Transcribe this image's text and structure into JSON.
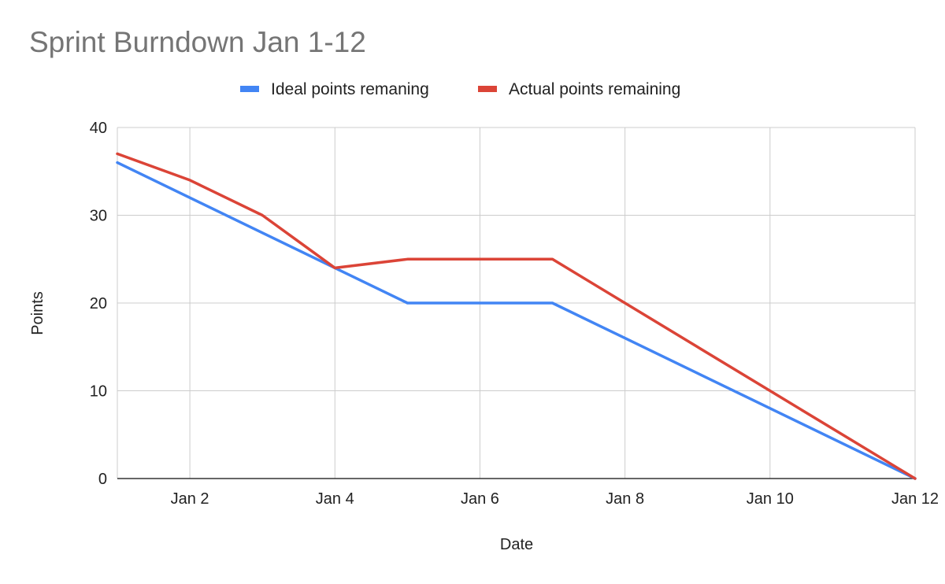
{
  "chart_data": {
    "type": "line",
    "title": "Sprint Burndown Jan 1-12",
    "xlabel": "Date",
    "ylabel": "Points",
    "x": [
      "Jan 1",
      "Jan 2",
      "Jan 3",
      "Jan 4",
      "Jan 5",
      "Jan 6",
      "Jan 7",
      "Jan 8",
      "Jan 9",
      "Jan 10",
      "Jan 11",
      "Jan 12"
    ],
    "x_tick_labels": [
      "Jan 2",
      "Jan 4",
      "Jan 6",
      "Jan 8",
      "Jan 10",
      "Jan 12"
    ],
    "ylim": [
      0,
      40
    ],
    "y_ticks": [
      0,
      10,
      20,
      30,
      40
    ],
    "y_tick_labels": [
      "0",
      "10",
      "20",
      "30",
      "40"
    ],
    "grid": true,
    "legend_position": "top",
    "series": [
      {
        "name": "Ideal points remaning",
        "color": "#4285f4",
        "values": [
          36,
          32,
          28,
          24,
          20,
          20,
          20,
          16,
          12,
          8,
          4,
          0
        ]
      },
      {
        "name": "Actual points remaining",
        "color": "#db4437",
        "values": [
          37,
          34,
          30,
          24,
          25,
          25,
          25,
          20,
          15,
          10,
          5,
          0
        ]
      }
    ]
  }
}
